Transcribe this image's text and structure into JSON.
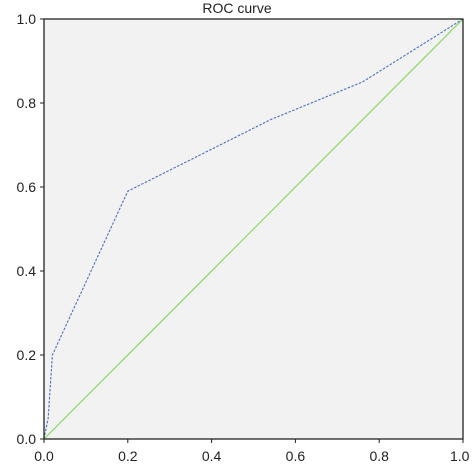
{
  "chart_data": {
    "type": "line",
    "title": "ROC curve",
    "xlabel": "",
    "ylabel": "",
    "xlim": [
      0,
      1
    ],
    "ylim": [
      0,
      1
    ],
    "grid": false,
    "x_ticks": [
      "0.0",
      "0.2",
      "0.4",
      "0.6",
      "0.8",
      "1.0"
    ],
    "y_ticks": [
      "0.0",
      "0.2",
      "0.4",
      "0.6",
      "0.8",
      "1.0"
    ],
    "series": [
      {
        "name": "",
        "color": "#4a6fc4",
        "style": "dashed",
        "x": [
          0,
          0.01,
          0.02,
          0.2,
          0.54,
          0.76,
          1.0
        ],
        "y": [
          0,
          0.05,
          0.2,
          0.59,
          0.76,
          0.85,
          1.0
        ]
      },
      {
        "name": "",
        "color": "#7fd85a",
        "style": "solid",
        "x": [
          0,
          1
        ],
        "y": [
          0,
          1
        ]
      }
    ],
    "colors": {
      "plot_background": "#f2f2f2",
      "frame": "#222222",
      "text": "#222222"
    }
  }
}
